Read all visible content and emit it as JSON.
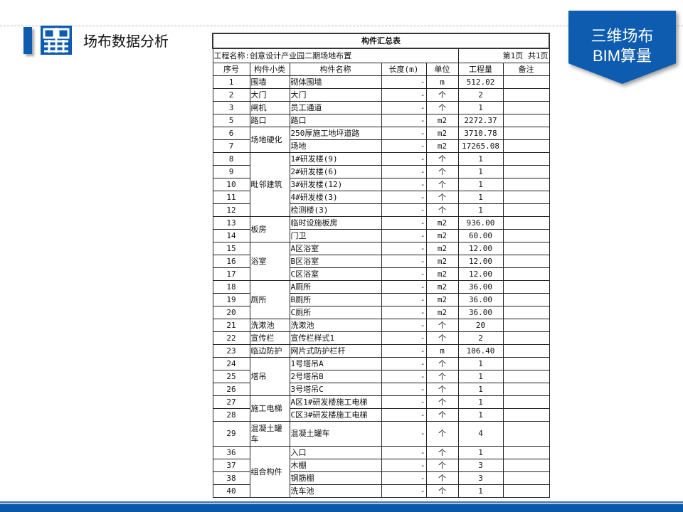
{
  "header": {
    "title": "场布数据分析"
  },
  "badge": {
    "line1": "三维场布",
    "line2": "BIM算量"
  },
  "colors": {
    "brand_blue": "#0d5cb0"
  },
  "table": {
    "title": "构件汇总表",
    "project": "工程名称:创意设计产业园二期场地布置",
    "page_info": "第1页 共1页",
    "columns": [
      "序号",
      "构件小类",
      "构件名称",
      "长度(m)",
      "单位",
      "工程量",
      "备注"
    ],
    "groups": [
      {
        "category": "围墙",
        "rows": [
          {
            "seq": "1",
            "name": "砌体围墙",
            "length": "-",
            "unit": "m",
            "qty": "512.02",
            "note": ""
          }
        ]
      },
      {
        "category": "大门",
        "rows": [
          {
            "seq": "2",
            "name": "大门",
            "length": "-",
            "unit": "个",
            "qty": "2",
            "note": ""
          }
        ]
      },
      {
        "category": "闸机",
        "rows": [
          {
            "seq": "3",
            "name": "员工通道",
            "length": "-",
            "unit": "个",
            "qty": "1",
            "note": ""
          }
        ]
      },
      {
        "category": "路口",
        "rows": [
          {
            "seq": "5",
            "name": "路口",
            "length": "-",
            "unit": "m2",
            "qty": "2272.37",
            "note": ""
          }
        ]
      },
      {
        "category": "场地硬化",
        "rows": [
          {
            "seq": "6",
            "name": "250厚施工地坪道路",
            "length": "-",
            "unit": "m2",
            "qty": "3710.78",
            "note": ""
          },
          {
            "seq": "7",
            "name": "场地",
            "length": "-",
            "unit": "m2",
            "qty": "17265.08",
            "note": ""
          }
        ]
      },
      {
        "category": "毗邻建筑",
        "rows": [
          {
            "seq": "8",
            "name": "1#研发楼(9)",
            "length": "-",
            "unit": "个",
            "qty": "1",
            "note": ""
          },
          {
            "seq": "9",
            "name": "2#研发楼(6)",
            "length": "-",
            "unit": "个",
            "qty": "1",
            "note": ""
          },
          {
            "seq": "10",
            "name": "3#研发楼(12)",
            "length": "-",
            "unit": "个",
            "qty": "1",
            "note": ""
          },
          {
            "seq": "11",
            "name": "4#研发楼(3)",
            "length": "-",
            "unit": "个",
            "qty": "1",
            "note": ""
          },
          {
            "seq": "12",
            "name": "检测楼(3)",
            "length": "-",
            "unit": "个",
            "qty": "1",
            "note": ""
          }
        ]
      },
      {
        "category": "板房",
        "rows": [
          {
            "seq": "13",
            "name": "临时设施板房",
            "length": "-",
            "unit": "m2",
            "qty": "936.00",
            "note": ""
          },
          {
            "seq": "14",
            "name": "门卫",
            "length": "-",
            "unit": "m2",
            "qty": "60.00",
            "note": ""
          }
        ]
      },
      {
        "category": "浴室",
        "rows": [
          {
            "seq": "15",
            "name": "A区浴室",
            "length": "-",
            "unit": "m2",
            "qty": "12.00",
            "note": ""
          },
          {
            "seq": "16",
            "name": "B区浴室",
            "length": "-",
            "unit": "m2",
            "qty": "12.00",
            "note": ""
          },
          {
            "seq": "17",
            "name": "C区浴室",
            "length": "-",
            "unit": "m2",
            "qty": "12.00",
            "note": ""
          }
        ]
      },
      {
        "category": "厕所",
        "rows": [
          {
            "seq": "18",
            "name": "A厕所",
            "length": "-",
            "unit": "m2",
            "qty": "36.00",
            "note": ""
          },
          {
            "seq": "19",
            "name": "B厕所",
            "length": "-",
            "unit": "m2",
            "qty": "36.00",
            "note": ""
          },
          {
            "seq": "20",
            "name": "C厕所",
            "length": "-",
            "unit": "m2",
            "qty": "36.00",
            "note": ""
          }
        ]
      },
      {
        "category": "洗漱池",
        "rows": [
          {
            "seq": "21",
            "name": "洗漱池",
            "length": "-",
            "unit": "个",
            "qty": "20",
            "note": ""
          }
        ]
      },
      {
        "category": "宣传栏",
        "rows": [
          {
            "seq": "22",
            "name": "宣传栏样式1",
            "length": "-",
            "unit": "个",
            "qty": "2",
            "note": ""
          }
        ]
      },
      {
        "category": "临边防护",
        "rows": [
          {
            "seq": "23",
            "name": "网片式防护栏杆",
            "length": "-",
            "unit": "m",
            "qty": "106.40",
            "note": ""
          }
        ]
      },
      {
        "category": "塔吊",
        "rows": [
          {
            "seq": "24",
            "name": "1号塔吊A",
            "length": "-",
            "unit": "个",
            "qty": "1",
            "note": ""
          },
          {
            "seq": "25",
            "name": "2号塔吊B",
            "length": "-",
            "unit": "个",
            "qty": "1",
            "note": ""
          },
          {
            "seq": "26",
            "name": "3号塔吊C",
            "length": "-",
            "unit": "个",
            "qty": "1",
            "note": ""
          }
        ]
      },
      {
        "category": "施工电梯",
        "rows": [
          {
            "seq": "27",
            "name": "A区1#研发楼施工电梯",
            "length": "-",
            "unit": "个",
            "qty": "1",
            "note": ""
          },
          {
            "seq": "28",
            "name": "C区3#研发楼施工电梯",
            "length": "-",
            "unit": "个",
            "qty": "1",
            "note": ""
          }
        ]
      },
      {
        "category": "混凝土罐车",
        "tall": true,
        "rows": [
          {
            "seq": "29",
            "name": "混凝土罐车",
            "length": "-",
            "unit": "个",
            "qty": "4",
            "note": ""
          }
        ]
      },
      {
        "category": "组合构件",
        "rows": [
          {
            "seq": "36",
            "name": "入口",
            "length": "-",
            "unit": "个",
            "qty": "1",
            "note": ""
          },
          {
            "seq": "37",
            "name": "木棚",
            "length": "-",
            "unit": "个",
            "qty": "3",
            "note": ""
          },
          {
            "seq": "38",
            "name": "钢筋棚",
            "length": "-",
            "unit": "个",
            "qty": "3",
            "note": ""
          },
          {
            "seq": "40",
            "name": "洗车池",
            "length": "-",
            "unit": "个",
            "qty": "1",
            "note": ""
          }
        ]
      }
    ]
  }
}
